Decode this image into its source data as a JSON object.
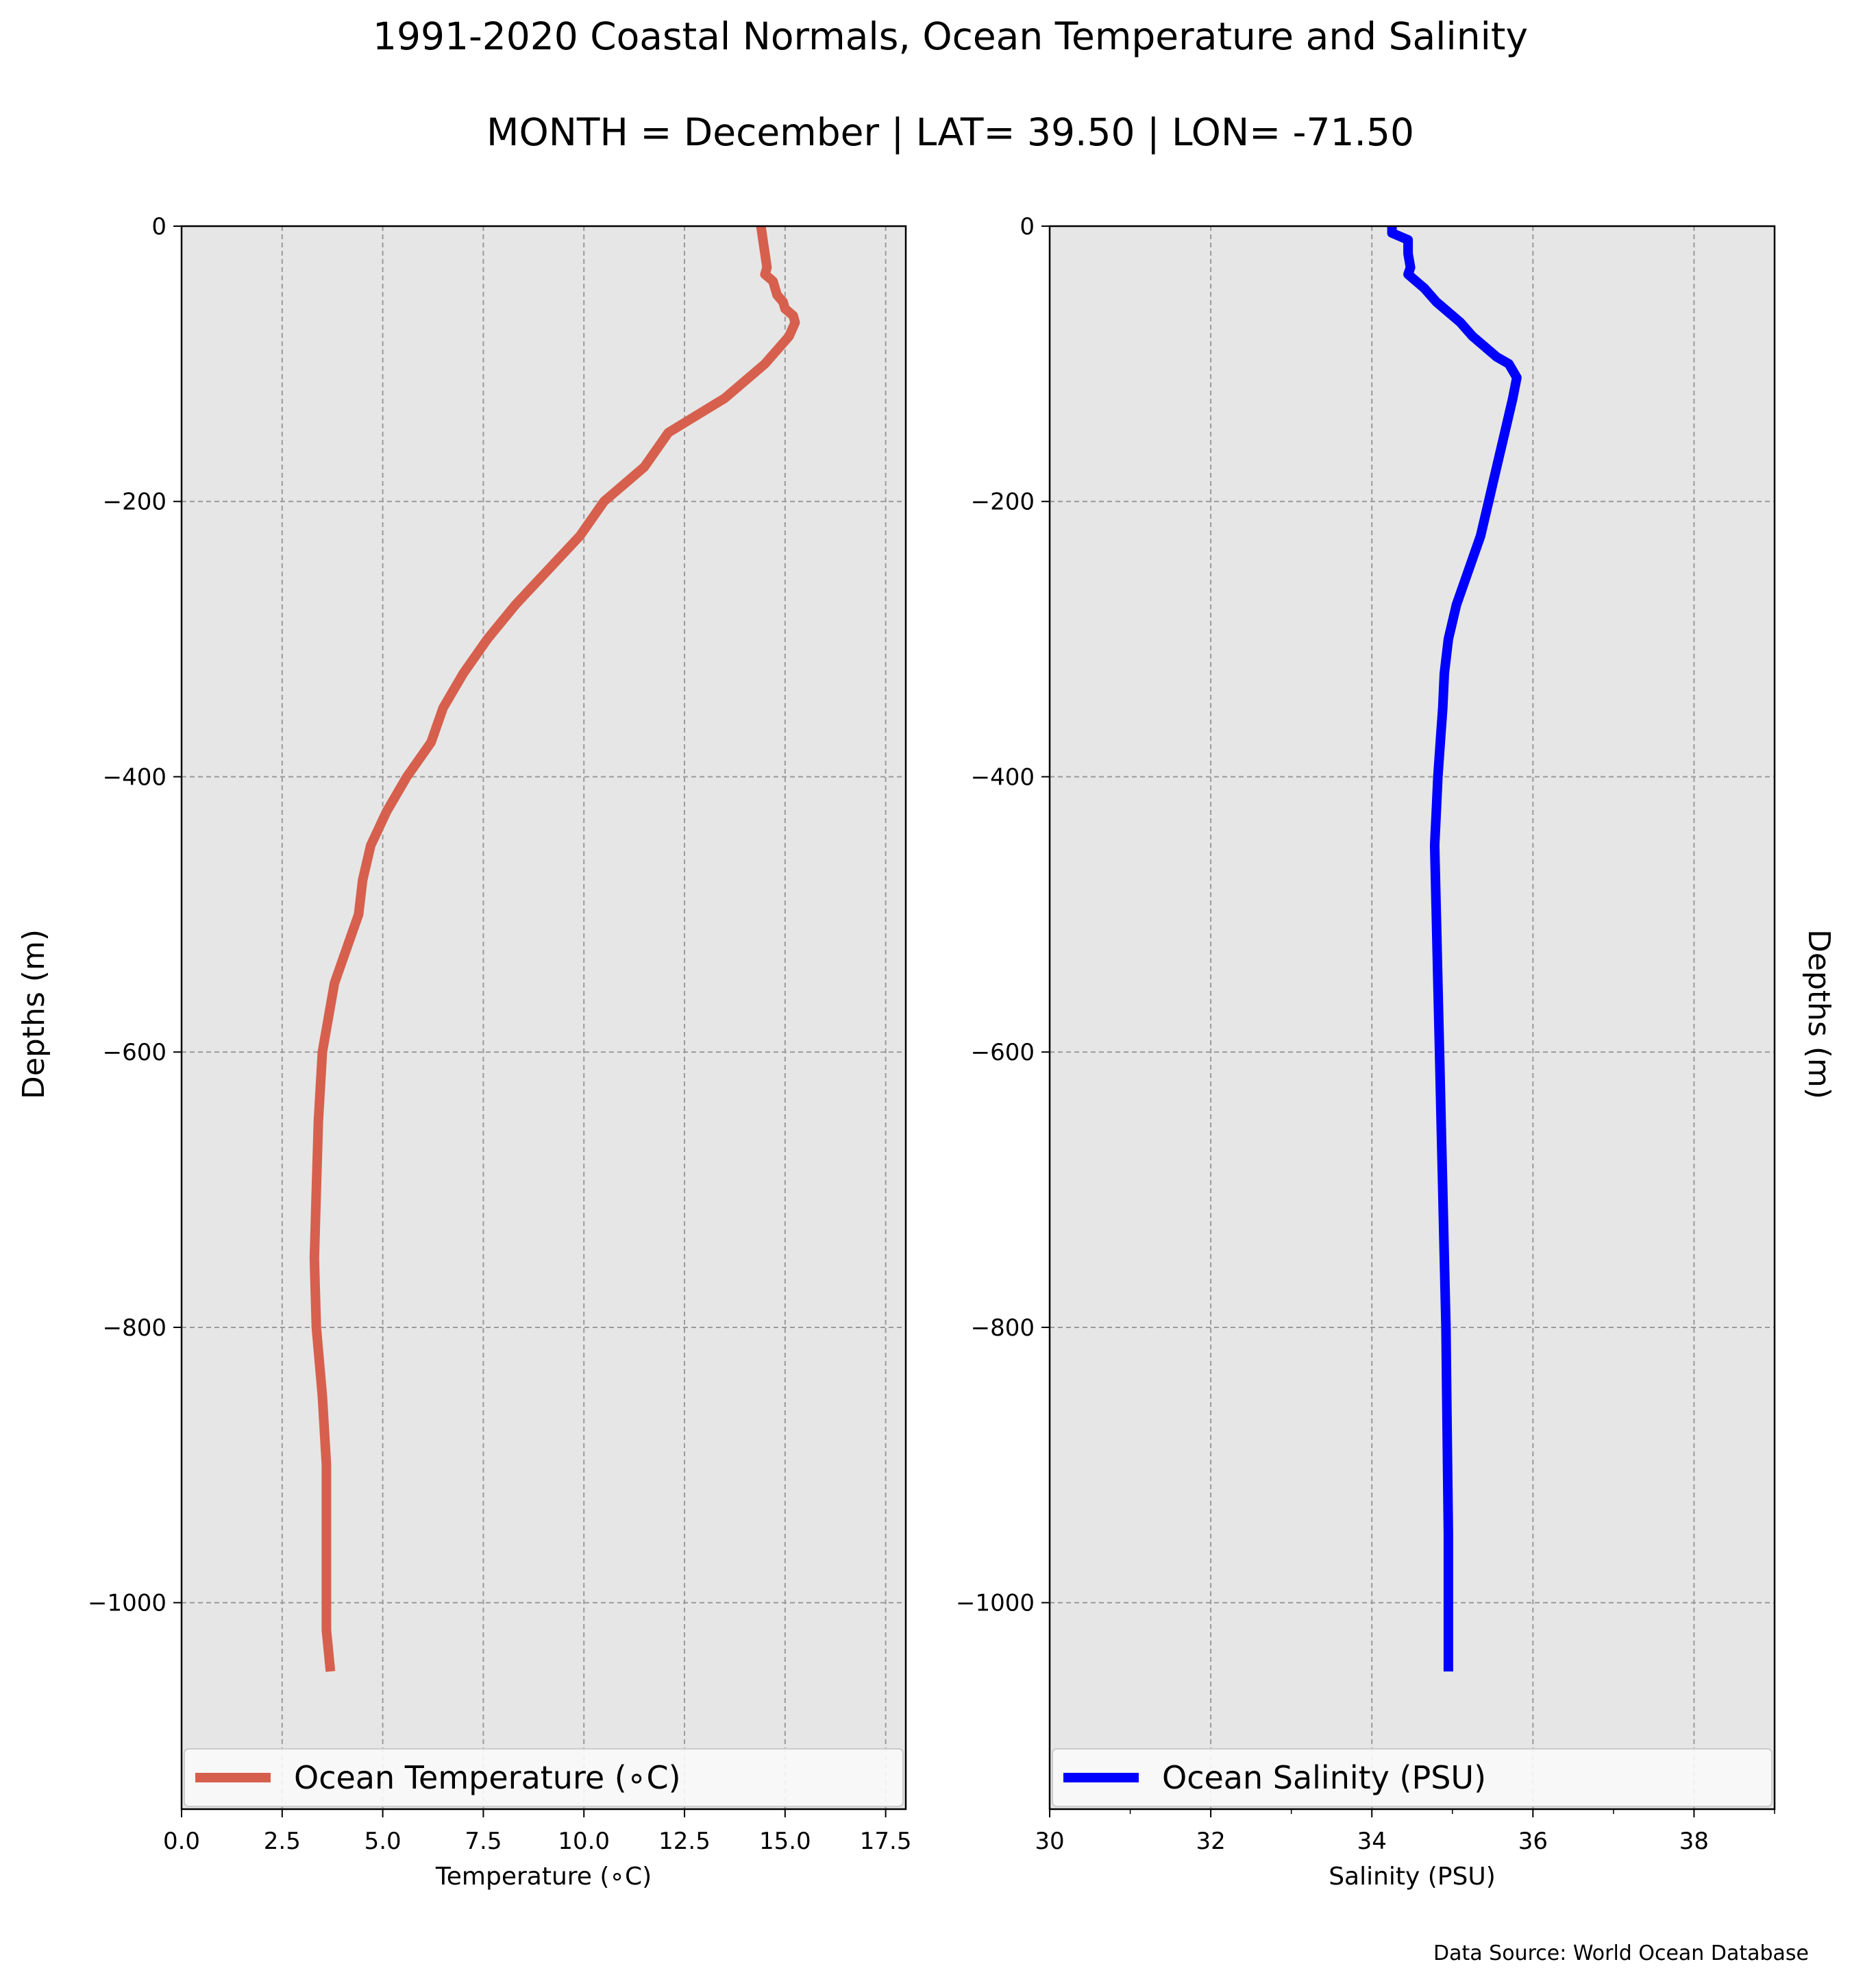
{
  "figure": {
    "title_line1": "1991-2020 Coastal Normals, Ocean Temperature and Salinity",
    "title_line2": "MONTH = December | LAT= 39.50 | LON= -71.50",
    "source": "Data Source: World Ocean Database",
    "depth_label_left": "Depths (m)",
    "depth_label_right": "Depths (m)"
  },
  "chart_data": [
    {
      "type": "line",
      "xlabel": "Temperature (∘C)",
      "ylabel": "Depths (m)",
      "xlim": [
        0,
        18
      ],
      "ylim": [
        -1150,
        0
      ],
      "x_ticks": [
        0,
        2.5,
        5,
        7.5,
        10,
        12.5,
        15,
        17.5
      ],
      "x_tick_labels": [
        "0.0",
        "2.5",
        "5.0",
        "7.5",
        "10.0",
        "12.5",
        "15.0",
        "17.5"
      ],
      "y_ticks": [
        0,
        -200,
        -400,
        -600,
        -800,
        -1000
      ],
      "y_tick_labels": [
        "0",
        "−200",
        "−400",
        "−600",
        "−800",
        "−1000"
      ],
      "grid": true,
      "legend_position": "lower center",
      "colors": {
        "line": "#d6604d",
        "background": "#e6e6e6",
        "grid": "#9a9a9a"
      },
      "series": [
        {
          "name": "Ocean Temperature (∘C)",
          "x": [
            14.4,
            14.45,
            14.5,
            14.55,
            14.5,
            14.7,
            14.8,
            14.95,
            15.0,
            15.2,
            15.25,
            15.1,
            14.8,
            14.5,
            13.5,
            12.1,
            11.5,
            10.5,
            9.9,
            9.1,
            8.3,
            7.6,
            7.0,
            6.5,
            6.2,
            5.6,
            5.1,
            4.7,
            4.5,
            4.4,
            3.8,
            3.5,
            3.4,
            3.35,
            3.3,
            3.35,
            3.5,
            3.6,
            3.6,
            3.6,
            3.6,
            3.7
          ],
          "y": [
            0,
            -10,
            -20,
            -30,
            -35,
            -40,
            -50,
            -55,
            -60,
            -65,
            -70,
            -80,
            -90,
            -100,
            -125,
            -150,
            -175,
            -200,
            -225,
            -250,
            -275,
            -300,
            -325,
            -350,
            -375,
            -400,
            -425,
            -450,
            -475,
            -500,
            -550,
            -600,
            -650,
            -700,
            -750,
            -800,
            -850,
            -900,
            -950,
            -1000,
            -1020,
            -1050
          ]
        }
      ]
    },
    {
      "type": "line",
      "xlabel": "Salinity (PSU)",
      "ylabel": "Depths (m)",
      "xlim": [
        30,
        39
      ],
      "ylim": [
        -1150,
        0
      ],
      "x_ticks": [
        30,
        32,
        34,
        36,
        38
      ],
      "x_tick_labels": [
        "30",
        "32",
        "34",
        "36",
        "38"
      ],
      "x_minor_ticks": [
        31,
        33,
        35,
        37,
        39
      ],
      "y_ticks": [
        0,
        -200,
        -400,
        -600,
        -800,
        -1000
      ],
      "y_tick_labels": [
        "0",
        "−200",
        "−400",
        "−600",
        "−800",
        "−1000"
      ],
      "grid": true,
      "legend_position": "lower center",
      "colors": {
        "line": "#0000ff",
        "background": "#e6e6e6",
        "grid": "#9a9a9a"
      },
      "series": [
        {
          "name": "Ocean Salinity (PSU)",
          "x": [
            34.25,
            34.25,
            34.45,
            34.45,
            34.48,
            34.45,
            34.65,
            34.8,
            34.9,
            35.1,
            35.25,
            35.45,
            35.55,
            35.7,
            35.8,
            35.75,
            35.65,
            35.55,
            35.45,
            35.35,
            35.2,
            35.05,
            34.95,
            34.9,
            34.88,
            34.85,
            34.82,
            34.8,
            34.78,
            34.8,
            34.82,
            34.84,
            34.86,
            34.88,
            34.9,
            34.92,
            34.93,
            34.94,
            34.95,
            34.95
          ],
          "y": [
            0,
            -5,
            -10,
            -20,
            -30,
            -35,
            -45,
            -55,
            -60,
            -70,
            -80,
            -90,
            -95,
            -100,
            -110,
            -125,
            -150,
            -175,
            -200,
            -225,
            -250,
            -275,
            -300,
            -325,
            -350,
            -375,
            -400,
            -425,
            -450,
            -500,
            -550,
            -600,
            -650,
            -700,
            -750,
            -800,
            -850,
            -900,
            -950,
            -1050
          ]
        }
      ]
    }
  ]
}
